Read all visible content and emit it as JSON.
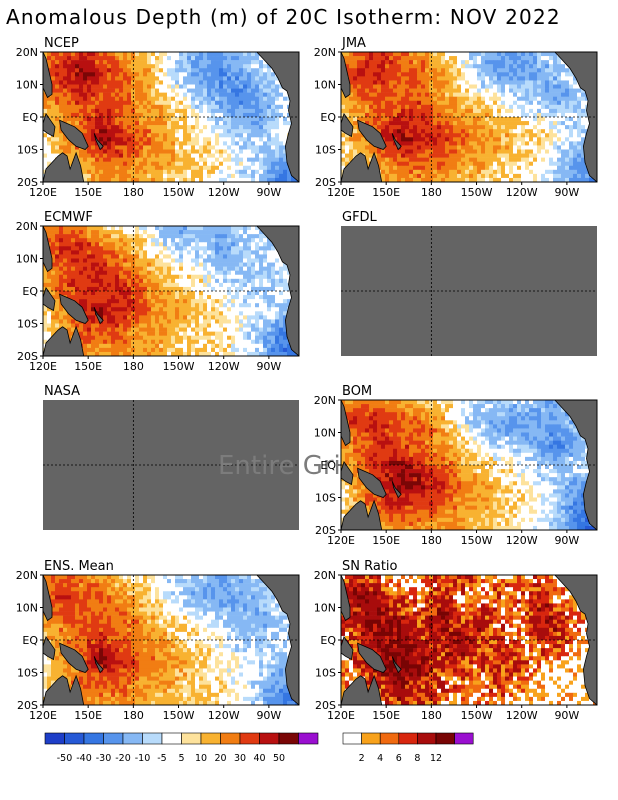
{
  "title": "Anomalous Depth (m) of 20C Isotherm: NOV 2022",
  "chart_data": [
    {
      "type": "heatmap",
      "panel": "NCEP",
      "xlabel": "",
      "ylabel": "",
      "x_ticks": [
        "120E",
        "150E",
        "180",
        "150W",
        "120W",
        "90W"
      ],
      "y_ticks": [
        "20N",
        "10N",
        "EQ",
        "10S",
        "20S"
      ],
      "region": "Tropical Pacific 120E–70W, 20S–20N",
      "pattern": [
        [
          20,
          30,
          40,
          30,
          20,
          10,
          0,
          -10,
          -20,
          -20,
          -10,
          -5,
          0,
          5
        ],
        [
          30,
          40,
          50,
          40,
          30,
          20,
          5,
          -10,
          -20,
          -30,
          -20,
          -10,
          0,
          5
        ],
        [
          20,
          30,
          40,
          30,
          30,
          20,
          10,
          0,
          -10,
          -20,
          -30,
          -20,
          -10,
          0
        ],
        [
          10,
          20,
          30,
          40,
          30,
          20,
          20,
          10,
          0,
          -10,
          -20,
          -20,
          -10,
          0
        ],
        [
          5,
          20,
          30,
          50,
          40,
          30,
          20,
          10,
          5,
          0,
          -10,
          -10,
          0,
          5
        ],
        [
          0,
          10,
          20,
          30,
          30,
          20,
          20,
          10,
          10,
          5,
          0,
          -10,
          -20,
          -30
        ],
        [
          0,
          5,
          10,
          20,
          20,
          20,
          10,
          10,
          5,
          0,
          -5,
          -10,
          -30,
          -40
        ]
      ]
    },
    {
      "type": "heatmap",
      "panel": "JMA",
      "x_ticks": [
        "120E",
        "150E",
        "180",
        "150W",
        "120W",
        "90W"
      ],
      "y_ticks": [
        "20N",
        "10N",
        "EQ",
        "10S",
        "20S"
      ],
      "pattern": [
        [
          20,
          30,
          40,
          30,
          20,
          10,
          0,
          -10,
          -20,
          -20,
          -10,
          -10,
          0,
          5
        ],
        [
          30,
          40,
          40,
          30,
          30,
          20,
          10,
          -10,
          -20,
          -20,
          -20,
          -10,
          0,
          5
        ],
        [
          20,
          30,
          30,
          30,
          30,
          20,
          10,
          5,
          0,
          -10,
          -10,
          -20,
          -10,
          0
        ],
        [
          10,
          20,
          30,
          40,
          40,
          30,
          20,
          20,
          10,
          5,
          0,
          -5,
          -10,
          0
        ],
        [
          10,
          20,
          40,
          50,
          40,
          40,
          30,
          20,
          20,
          10,
          10,
          0,
          -10,
          -10
        ],
        [
          5,
          10,
          20,
          30,
          30,
          30,
          20,
          20,
          10,
          10,
          5,
          -10,
          -20,
          -30
        ],
        [
          0,
          5,
          10,
          20,
          20,
          20,
          10,
          10,
          10,
          5,
          0,
          -10,
          -20,
          -30
        ]
      ]
    },
    {
      "type": "heatmap",
      "panel": "ECMWF",
      "x_ticks": [
        "120E",
        "150E",
        "180",
        "150W",
        "120W",
        "90W"
      ],
      "y_ticks": [
        "20N",
        "10N",
        "EQ",
        "10S",
        "20S"
      ],
      "pattern": [
        [
          20,
          30,
          20,
          10,
          5,
          0,
          -10,
          -20,
          -10,
          -20,
          -10,
          -5,
          0,
          5
        ],
        [
          30,
          40,
          40,
          30,
          20,
          10,
          0,
          -10,
          -10,
          -20,
          -10,
          -10,
          -5,
          0
        ],
        [
          20,
          30,
          40,
          40,
          30,
          20,
          10,
          5,
          0,
          -10,
          -10,
          -10,
          -5,
          0
        ],
        [
          10,
          30,
          40,
          40,
          40,
          30,
          20,
          10,
          5,
          0,
          -5,
          -10,
          -5,
          0
        ],
        [
          5,
          20,
          40,
          50,
          40,
          30,
          20,
          20,
          10,
          5,
          0,
          -5,
          -10,
          -20
        ],
        [
          5,
          20,
          30,
          30,
          30,
          20,
          20,
          10,
          10,
          5,
          0,
          -10,
          -30,
          -40
        ],
        [
          0,
          10,
          20,
          20,
          20,
          20,
          10,
          10,
          10,
          5,
          0,
          -10,
          -30,
          -40
        ]
      ]
    },
    {
      "type": "heatmap",
      "panel": "GFDL",
      "missing": true,
      "x_ticks": [],
      "y_ticks": []
    },
    {
      "type": "heatmap",
      "panel": "NASA",
      "missing": true,
      "overlay_text": "Entire Grid Undefined",
      "x_ticks": [],
      "y_ticks": []
    },
    {
      "type": "heatmap",
      "panel": "BOM",
      "x_ticks": [
        "120E",
        "150E",
        "180",
        "150W",
        "120W",
        "90W"
      ],
      "y_ticks": [
        "20N",
        "10N",
        "EQ",
        "10S",
        "20S"
      ],
      "pattern": [
        [
          20,
          30,
          20,
          20,
          10,
          5,
          0,
          -10,
          -10,
          -10,
          -10,
          -20,
          -10,
          0
        ],
        [
          30,
          40,
          40,
          30,
          30,
          20,
          0,
          -10,
          -20,
          -20,
          -20,
          -20,
          -10,
          0
        ],
        [
          20,
          30,
          40,
          30,
          30,
          20,
          10,
          0,
          -10,
          -10,
          -20,
          -30,
          -20,
          -5
        ],
        [
          10,
          30,
          40,
          50,
          40,
          30,
          20,
          10,
          5,
          0,
          -10,
          -10,
          -5,
          0
        ],
        [
          5,
          20,
          40,
          50,
          50,
          40,
          30,
          20,
          10,
          5,
          0,
          -10,
          -20,
          -30
        ],
        [
          5,
          20,
          30,
          40,
          30,
          30,
          20,
          20,
          10,
          10,
          0,
          -10,
          -30,
          -40
        ],
        [
          0,
          10,
          20,
          20,
          20,
          20,
          20,
          10,
          10,
          5,
          0,
          -10,
          -30,
          -40
        ]
      ]
    },
    {
      "type": "heatmap",
      "panel": "ENS. Mean",
      "x_ticks": [
        "120E",
        "150E",
        "180",
        "150W",
        "120W",
        "90W"
      ],
      "y_ticks": [
        "20N",
        "10N",
        "EQ",
        "10S",
        "20S"
      ],
      "pattern": [
        [
          20,
          30,
          20,
          20,
          10,
          5,
          0,
          -10,
          -10,
          -20,
          -10,
          -10,
          0,
          5
        ],
        [
          30,
          40,
          30,
          30,
          20,
          10,
          0,
          -10,
          -20,
          -20,
          -20,
          -10,
          -5,
          0
        ],
        [
          20,
          30,
          30,
          30,
          30,
          20,
          10,
          5,
          0,
          -10,
          -10,
          -20,
          -10,
          0
        ],
        [
          10,
          20,
          30,
          40,
          30,
          20,
          20,
          10,
          5,
          0,
          -10,
          -10,
          -5,
          0
        ],
        [
          5,
          20,
          30,
          50,
          40,
          30,
          20,
          20,
          10,
          5,
          0,
          -5,
          -10,
          -20
        ],
        [
          5,
          20,
          30,
          30,
          30,
          20,
          20,
          10,
          10,
          5,
          0,
          -10,
          -20,
          -30
        ],
        [
          0,
          10,
          20,
          20,
          20,
          20,
          10,
          10,
          10,
          5,
          0,
          -10,
          -30,
          -40
        ]
      ]
    },
    {
      "type": "heatmap",
      "panel": "SN Ratio",
      "x_ticks": [
        "120E",
        "150E",
        "180",
        "150W",
        "120W",
        "90W"
      ],
      "y_ticks": [
        "20N",
        "10N",
        "EQ",
        "10S",
        "20S"
      ],
      "pattern": [
        [
          4,
          8,
          4,
          2,
          0,
          6,
          8,
          4,
          2,
          6,
          4,
          2,
          0,
          0
        ],
        [
          8,
          12,
          8,
          6,
          4,
          8,
          4,
          2,
          6,
          4,
          8,
          4,
          2,
          0
        ],
        [
          6,
          8,
          12,
          8,
          6,
          12,
          6,
          8,
          4,
          2,
          12,
          8,
          4,
          0
        ],
        [
          4,
          8,
          12,
          12,
          8,
          8,
          12,
          8,
          6,
          4,
          6,
          8,
          2,
          0
        ],
        [
          2,
          6,
          12,
          12,
          12,
          8,
          8,
          6,
          8,
          6,
          4,
          2,
          0,
          0
        ],
        [
          2,
          4,
          8,
          12,
          8,
          6,
          4,
          2,
          8,
          4,
          2,
          0,
          0,
          0
        ],
        [
          0,
          2,
          4,
          6,
          8,
          4,
          2,
          4,
          2,
          0,
          0,
          0,
          0,
          0
        ]
      ]
    }
  ],
  "legends": {
    "anomaly": {
      "labels": [
        "-50",
        "-40",
        "-30",
        "-20",
        "-10",
        "-5",
        "5",
        "10",
        "20",
        "30",
        "40",
        "50"
      ],
      "thresholds": [
        -50,
        -40,
        -30,
        -20,
        -10,
        -5,
        5,
        10,
        20,
        30,
        40,
        50
      ],
      "colors": [
        "#1e3ec8",
        "#2659d6",
        "#3576e2",
        "#5794ec",
        "#86b8f4",
        "#b8dbfb",
        "#ffffff",
        "#fde29c",
        "#f8b231",
        "#f17d13",
        "#e03a12",
        "#b81010",
        "#7a0606",
        "#9a0fd0"
      ]
    },
    "sn_ratio": {
      "labels": [
        "2",
        "4",
        "6",
        "8",
        "12"
      ],
      "thresholds": [
        2,
        4,
        6,
        8,
        12
      ],
      "colors": [
        "#ffffff",
        "#f8a21c",
        "#f06a10",
        "#d8260e",
        "#a80c0c",
        "#780404",
        "#9a0fd0"
      ]
    }
  },
  "colors": {
    "land": "#5f5f5f",
    "undefined": "#646464"
  }
}
